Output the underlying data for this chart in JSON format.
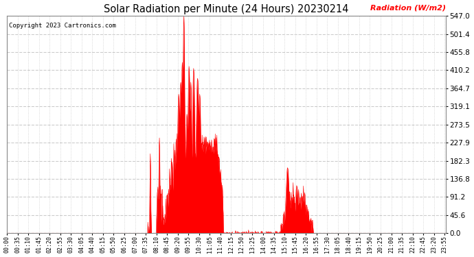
{
  "title": "Solar Radiation per Minute (24 Hours) 20230214",
  "copyright_text": "Copyright 2023 Cartronics.com",
  "ylabel": "Radiation (W/m2)",
  "ylabel_color": "#ff0000",
  "title_color": "#000000",
  "background_color": "#ffffff",
  "plot_bg_color": "#ffffff",
  "fill_color": "#ff0000",
  "line_color": "#ff0000",
  "grid_color": "#cccccc",
  "ymax": 547.0,
  "ymin": 0.0,
  "yticks": [
    0.0,
    45.6,
    91.2,
    136.8,
    182.3,
    227.9,
    273.5,
    319.1,
    364.7,
    410.2,
    455.8,
    501.4,
    547.0
  ],
  "total_minutes": 1440,
  "x_tick_labels": [
    "00:00",
    "00:35",
    "01:10",
    "01:45",
    "02:20",
    "02:55",
    "03:30",
    "04:05",
    "04:40",
    "05:15",
    "05:50",
    "06:25",
    "07:00",
    "07:35",
    "08:10",
    "08:45",
    "09:20",
    "09:55",
    "10:30",
    "11:05",
    "11:40",
    "12:15",
    "12:50",
    "13:25",
    "14:00",
    "14:35",
    "15:10",
    "15:45",
    "16:20",
    "16:55",
    "17:30",
    "18:05",
    "18:40",
    "19:15",
    "19:50",
    "20:25",
    "21:00",
    "21:35",
    "22:10",
    "22:45",
    "23:20",
    "23:55"
  ],
  "x_tick_positions": [
    0,
    35,
    70,
    105,
    140,
    175,
    210,
    245,
    280,
    315,
    350,
    385,
    420,
    455,
    490,
    525,
    560,
    595,
    630,
    665,
    700,
    735,
    770,
    805,
    840,
    875,
    910,
    945,
    980,
    1015,
    1050,
    1085,
    1120,
    1155,
    1190,
    1225,
    1260,
    1295,
    1330,
    1365,
    1400,
    1435
  ]
}
